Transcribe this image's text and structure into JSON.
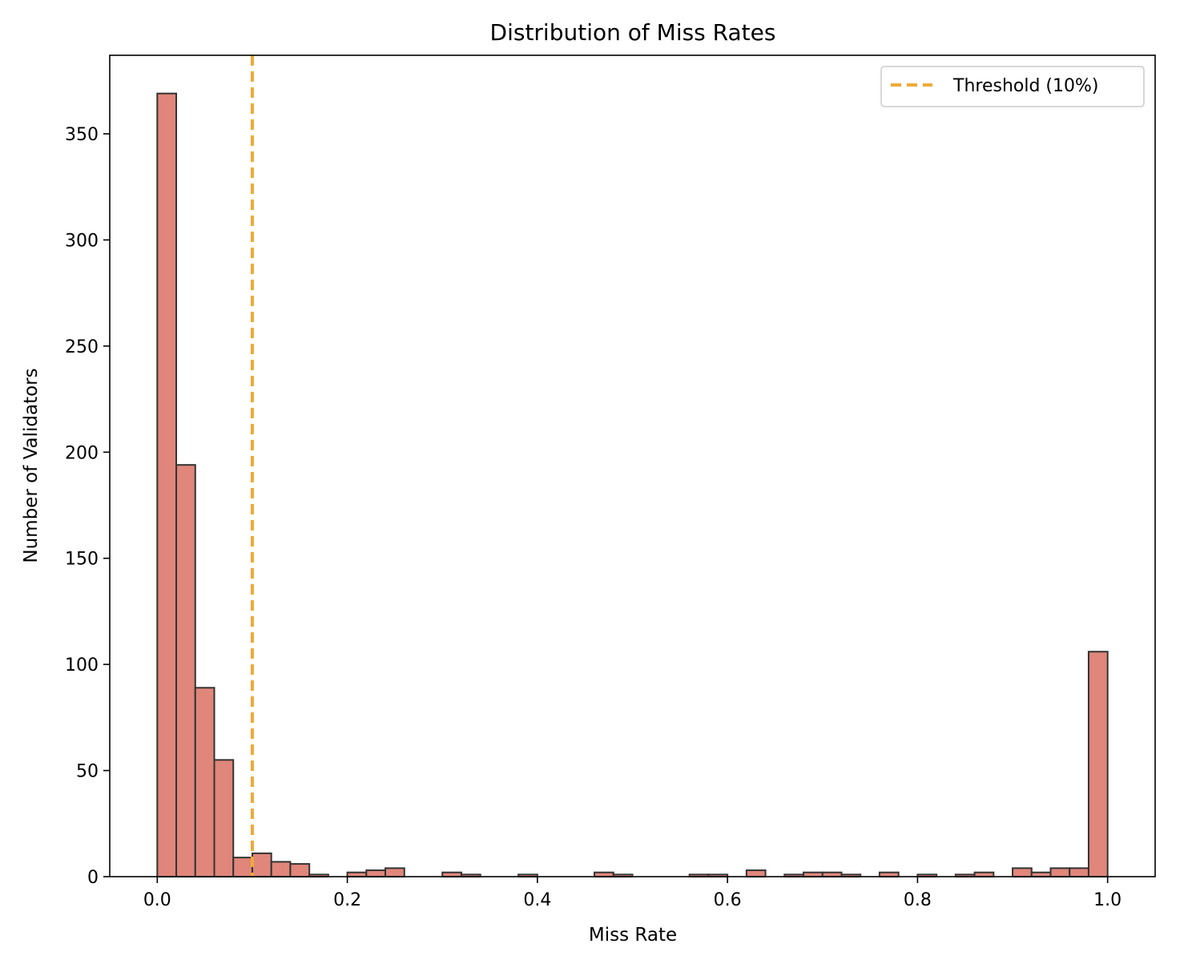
{
  "chart_data": {
    "type": "bar",
    "title": "Distribution of Miss Rates",
    "xlabel": "Miss Rate",
    "ylabel": "Number of Validators",
    "xlim": [
      -0.05,
      1.05
    ],
    "ylim": [
      0,
      387
    ],
    "xticks": [
      0.0,
      0.2,
      0.4,
      0.6,
      0.8,
      1.0
    ],
    "xtick_labels": [
      "0.0",
      "0.2",
      "0.4",
      "0.6",
      "0.8",
      "1.0"
    ],
    "yticks": [
      0,
      50,
      100,
      150,
      200,
      250,
      300,
      350
    ],
    "ytick_labels": [
      "0",
      "50",
      "100",
      "150",
      "200",
      "250",
      "300",
      "350"
    ],
    "bin_start": 0.0,
    "bin_width": 0.02,
    "values": [
      369,
      194,
      89,
      55,
      9,
      11,
      7,
      6,
      1,
      0,
      2,
      3,
      4,
      0,
      0,
      2,
      1,
      0,
      0,
      1,
      0,
      0,
      0,
      2,
      1,
      0,
      0,
      0,
      1,
      1,
      0,
      3,
      0,
      1,
      2,
      2,
      1,
      0,
      2,
      0,
      1,
      0,
      1,
      2,
      0,
      4,
      2,
      4,
      4,
      106
    ],
    "bar_color": "#e0867a",
    "bar_edge_color": "#333333",
    "threshold": {
      "x": 0.1,
      "label": "Threshold (10%)",
      "color": "#eeaa3a",
      "style": "dashed"
    },
    "legend_position": "top-right",
    "grid": false
  }
}
